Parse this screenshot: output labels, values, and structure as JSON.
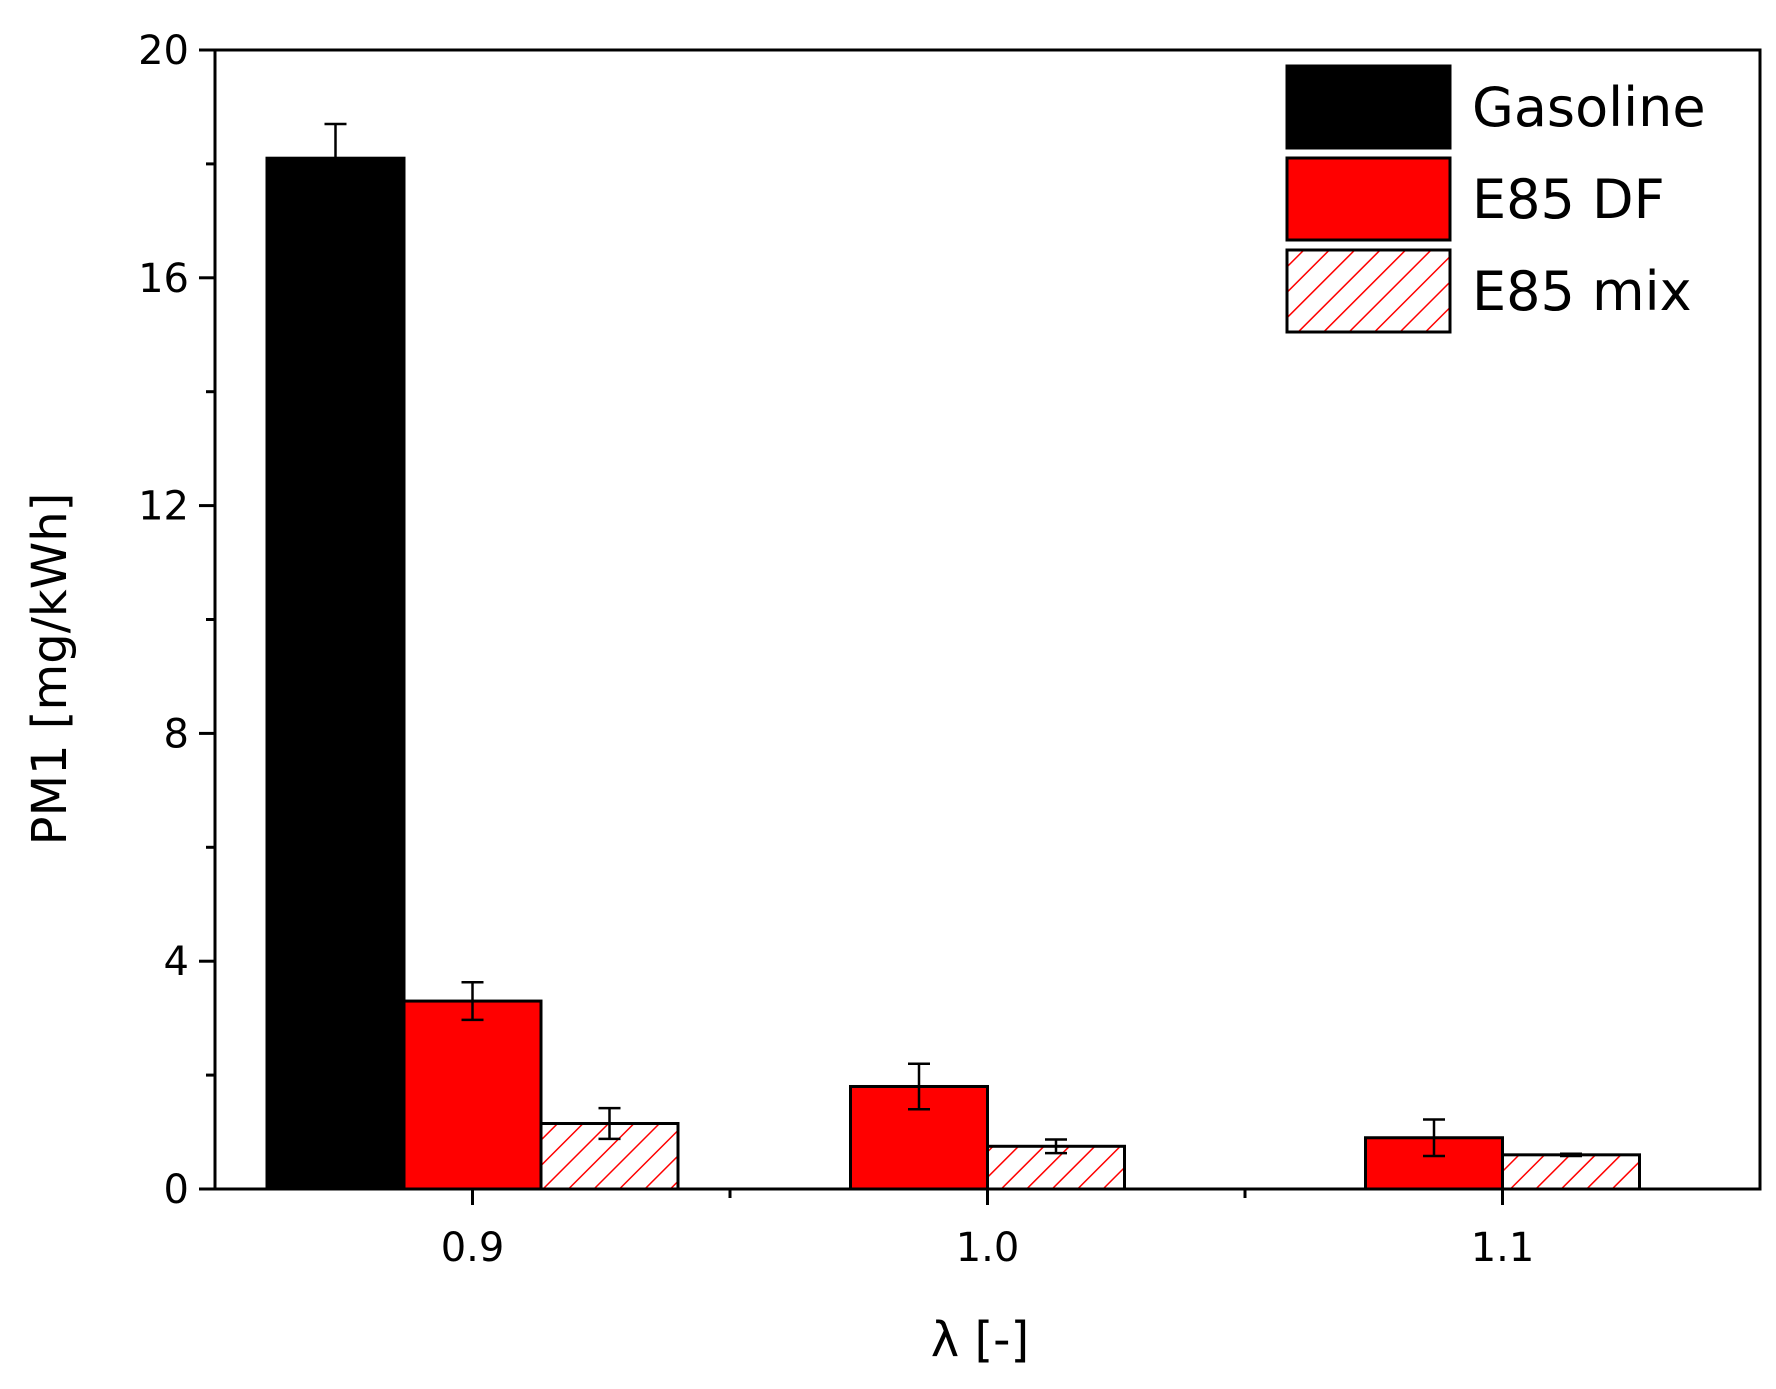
{
  "chart_data": {
    "type": "bar",
    "title": "",
    "xlabel": "λ [-]",
    "ylabel": "PM1 [mg/kWh]",
    "ylim": [
      0,
      20
    ],
    "yticks": [
      0,
      4,
      8,
      12,
      16,
      20
    ],
    "yticks_minor": [
      2,
      6,
      10,
      14,
      18
    ],
    "categories": [
      "0.9",
      "1.0",
      "1.1"
    ],
    "legend_position": "top-right",
    "grid": false,
    "series": [
      {
        "name": "Gasoline",
        "fill": "#000000",
        "pattern": "solid",
        "values": [
          18.1,
          null,
          null
        ],
        "errors": [
          0.6,
          null,
          null
        ]
      },
      {
        "name": "E85 DF",
        "fill": "#ff0000",
        "pattern": "solid",
        "values": [
          3.3,
          1.8,
          0.9
        ],
        "errors": [
          0.33,
          0.4,
          0.32
        ]
      },
      {
        "name": "E85 mix",
        "fill": "#ffffff",
        "pattern": "red-diagonal-hatch",
        "values": [
          1.15,
          0.75,
          0.6
        ],
        "errors": [
          0.27,
          0.12,
          0.02
        ]
      }
    ]
  },
  "colors": {
    "gasoline": "#000000",
    "e85_df": "#ff0000",
    "e85_mix_hatch": "#ff0000",
    "axis": "#000000",
    "background": "#ffffff"
  }
}
